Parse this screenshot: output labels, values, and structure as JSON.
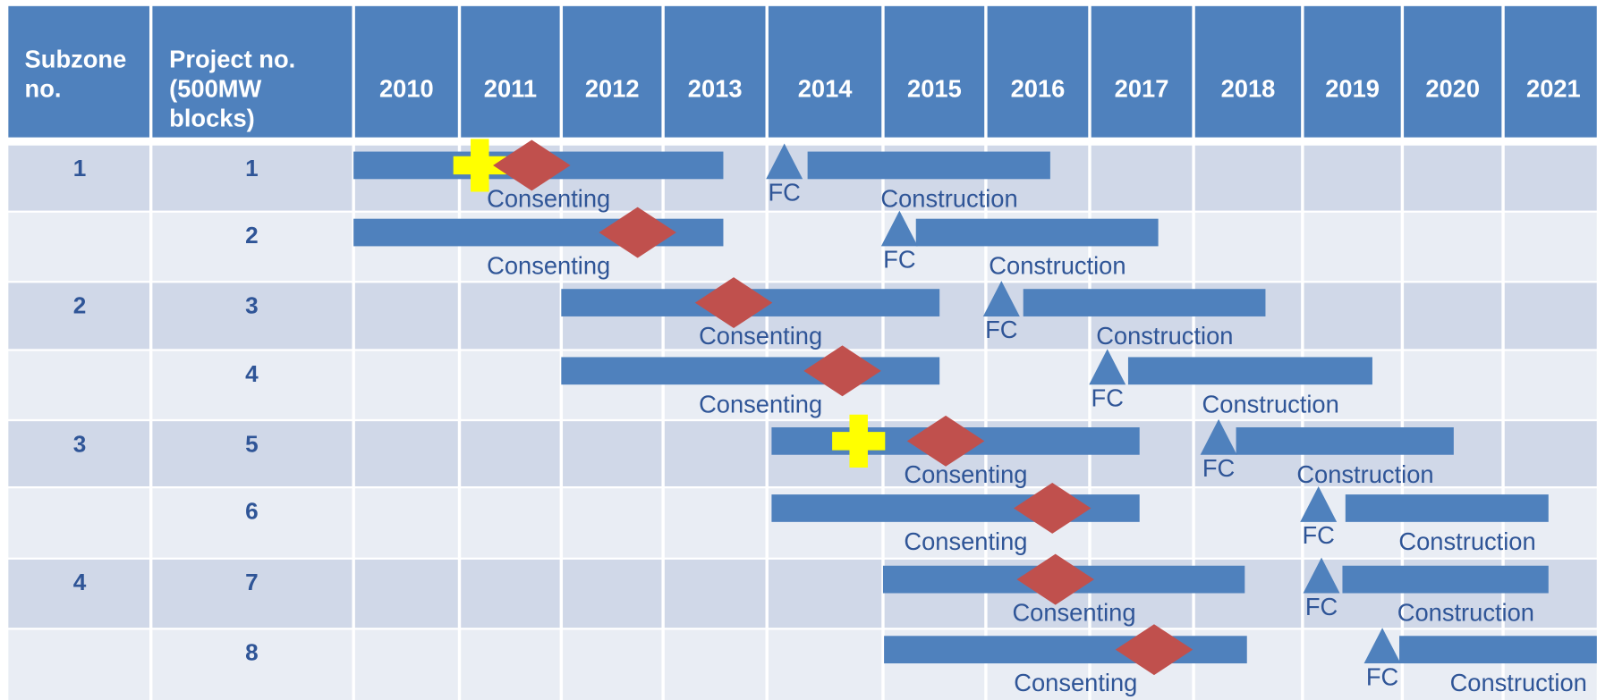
{
  "subzone_header": [
    "Subzone",
    "no."
  ],
  "project_header": [
    "Project no.",
    "(500MW",
    "blocks)"
  ],
  "years": [
    2010,
    2011,
    2012,
    2013,
    2014,
    2015,
    2016,
    2017,
    2018,
    2019,
    2020,
    2021
  ],
  "rows": [
    {
      "subzone": "1",
      "project": "1",
      "consenting": {
        "label": "Consenting",
        "start": 2010,
        "end": 2013.58,
        "milestone": 2011.71,
        "cross": 2011.2
      },
      "fc": {
        "label": "FC",
        "value": 2014.15
      },
      "construction": {
        "label": "Construction",
        "start": 2014.35,
        "end": 2016.62
      }
    },
    {
      "project": "2",
      "consenting": {
        "label": "Consenting",
        "start": 2010,
        "end": 2013.58,
        "milestone": 2012.75
      },
      "fc": {
        "label": "FC",
        "value": 2015.16
      },
      "construction": {
        "label": "Construction",
        "start": 2015.32,
        "end": 2017.66
      }
    },
    {
      "subzone": "2",
      "project": "3",
      "consenting": {
        "label": "Consenting",
        "start": 2012,
        "end": 2015.55,
        "milestone": 2013.68
      },
      "fc": {
        "label": "FC",
        "value": 2016.15
      },
      "construction": {
        "label": "Construction",
        "start": 2016.36,
        "end": 2018.66
      }
    },
    {
      "project": "4",
      "consenting": {
        "label": "Consenting",
        "start": 2012,
        "end": 2015.55,
        "milestone": 2014.65
      },
      "fc": {
        "label": "FC",
        "value": 2017.17
      },
      "construction": {
        "label": "Construction",
        "start": 2017.37,
        "end": 2019.7
      }
    },
    {
      "subzone": "3",
      "project": "5",
      "consenting": {
        "label": "Consenting",
        "start": 2014.04,
        "end": 2017.48,
        "milestone": 2015.61,
        "cross": 2014.79
      },
      "fc": {
        "label": "FC",
        "value": 2018.23
      },
      "construction": {
        "label": "Construction",
        "start": 2018.39,
        "end": 2020.51
      }
    },
    {
      "project": "6",
      "consenting": {
        "label": "Consenting",
        "start": 2014.04,
        "end": 2017.48,
        "milestone": 2016.64
      },
      "fc": {
        "label": "FC",
        "value": 2019.16
      },
      "construction": {
        "label": "Construction",
        "start": 2019.43,
        "end": 2021.45
      }
    },
    {
      "subzone": "4",
      "project": "7",
      "consenting": {
        "label": "Consenting",
        "start": 2015,
        "end": 2018.47,
        "milestone": 2016.67
      },
      "fc": {
        "label": "FC",
        "value": 2019.19
      },
      "construction": {
        "label": "Construction",
        "start": 2019.4,
        "end": 2021.45
      }
    },
    {
      "project": "8",
      "consenting": {
        "label": "Consenting",
        "start": 2015.01,
        "end": 2018.49,
        "milestone": 2017.62
      },
      "fc": {
        "label": "FC",
        "value": 2019.8
      },
      "construction": {
        "label": "Construction",
        "start": 2019.97,
        "end": 2021.93
      }
    }
  ]
}
